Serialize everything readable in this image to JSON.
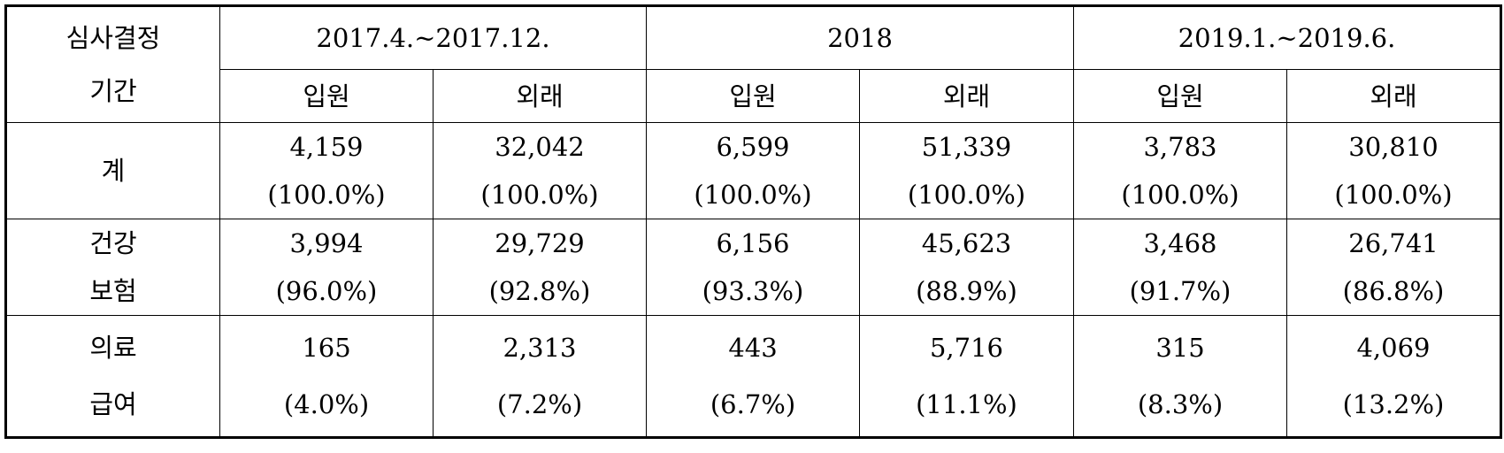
{
  "table": {
    "corner": [
      "심사결정",
      "기간"
    ],
    "periods": [
      "2017.4.~2017.12.",
      "2018",
      "2019.1.~2019.6."
    ],
    "subheaders": [
      "입원",
      "외래",
      "입원",
      "외래",
      "입원",
      "외래"
    ],
    "rows": [
      {
        "label": [
          "계"
        ],
        "cells": [
          [
            "4,159",
            "(100.0%)"
          ],
          [
            "32,042",
            "(100.0%)"
          ],
          [
            "6,599",
            "(100.0%)"
          ],
          [
            "51,339",
            "(100.0%)"
          ],
          [
            "3,783",
            "(100.0%)"
          ],
          [
            "30,810",
            "(100.0%)"
          ]
        ]
      },
      {
        "label": [
          "건강",
          "보험"
        ],
        "cells": [
          [
            "3,994",
            "(96.0%)"
          ],
          [
            "29,729",
            "(92.8%)"
          ],
          [
            "6,156",
            "(93.3%)"
          ],
          [
            "45,623",
            "(88.9%)"
          ],
          [
            "3,468",
            "(91.7%)"
          ],
          [
            "26,741",
            "(86.8%)"
          ]
        ]
      },
      {
        "label": [
          "의료",
          "급여"
        ],
        "cells": [
          [
            "165",
            "(4.0%)"
          ],
          [
            "2,313",
            "(7.2%)"
          ],
          [
            "443",
            "(6.7%)"
          ],
          [
            "5,716",
            "(11.1%)"
          ],
          [
            "315",
            "(8.3%)"
          ],
          [
            "4,069",
            "(13.2%)"
          ]
        ]
      }
    ]
  }
}
